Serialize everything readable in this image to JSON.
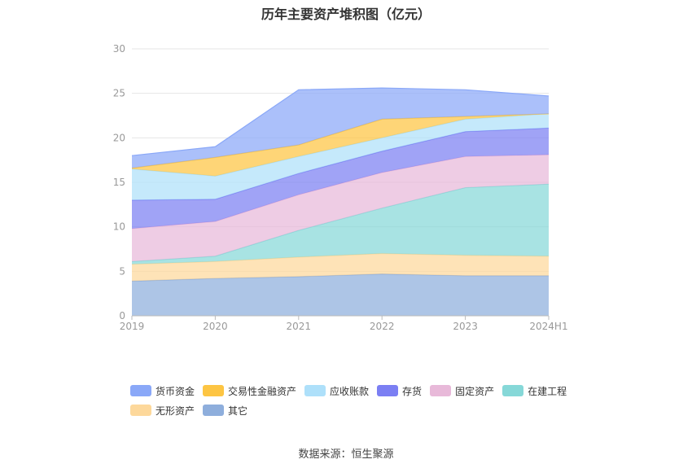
{
  "chart_data": {
    "type": "area",
    "stacked": true,
    "title": "历年主要资产堆积图（亿元）",
    "categories": [
      "2019",
      "2020",
      "2021",
      "2022",
      "2023",
      "2024H1"
    ],
    "y_ticks": [
      "0",
      "5",
      "10",
      "15",
      "20",
      "25",
      "30"
    ],
    "ylim": [
      0,
      30
    ],
    "grid": true,
    "legend_position": "bottom",
    "series": [
      {
        "name": "其它",
        "color": "#8eaedc",
        "values": [
          3.9,
          4.2,
          4.4,
          4.7,
          4.5,
          4.5
        ]
      },
      {
        "name": "无形资产",
        "color": "#fdd89b",
        "values": [
          1.9,
          1.9,
          2.2,
          2.3,
          2.3,
          2.2
        ]
      },
      {
        "name": "在建工程",
        "color": "#86d8d8",
        "values": [
          0.3,
          0.6,
          3.0,
          5.1,
          7.6,
          8.1
        ]
      },
      {
        "name": "固定资产",
        "color": "#e8b9d9",
        "values": [
          3.7,
          3.9,
          4.0,
          4.0,
          3.5,
          3.3
        ]
      },
      {
        "name": "存货",
        "color": "#7b7ff3",
        "values": [
          3.2,
          2.5,
          2.4,
          2.4,
          2.8,
          3.0
        ]
      },
      {
        "name": "应收账款",
        "color": "#aee0fa",
        "values": [
          3.5,
          2.6,
          1.9,
          1.5,
          1.4,
          1.6
        ]
      },
      {
        "name": "交易性金融资产",
        "color": "#fdc543",
        "values": [
          0.1,
          2.1,
          1.3,
          2.1,
          0.3,
          0
        ]
      },
      {
        "name": "货币资金",
        "color": "#8aa8f8",
        "values": [
          1.4,
          1.2,
          6.2,
          3.5,
          3.0,
          2.0
        ]
      }
    ],
    "legend_order": [
      "货币资金",
      "交易性金融资产",
      "应收账款",
      "存货",
      "固定资产",
      "在建工程",
      "无形资产",
      "其它"
    ]
  },
  "source": "数据来源：恒生聚源"
}
